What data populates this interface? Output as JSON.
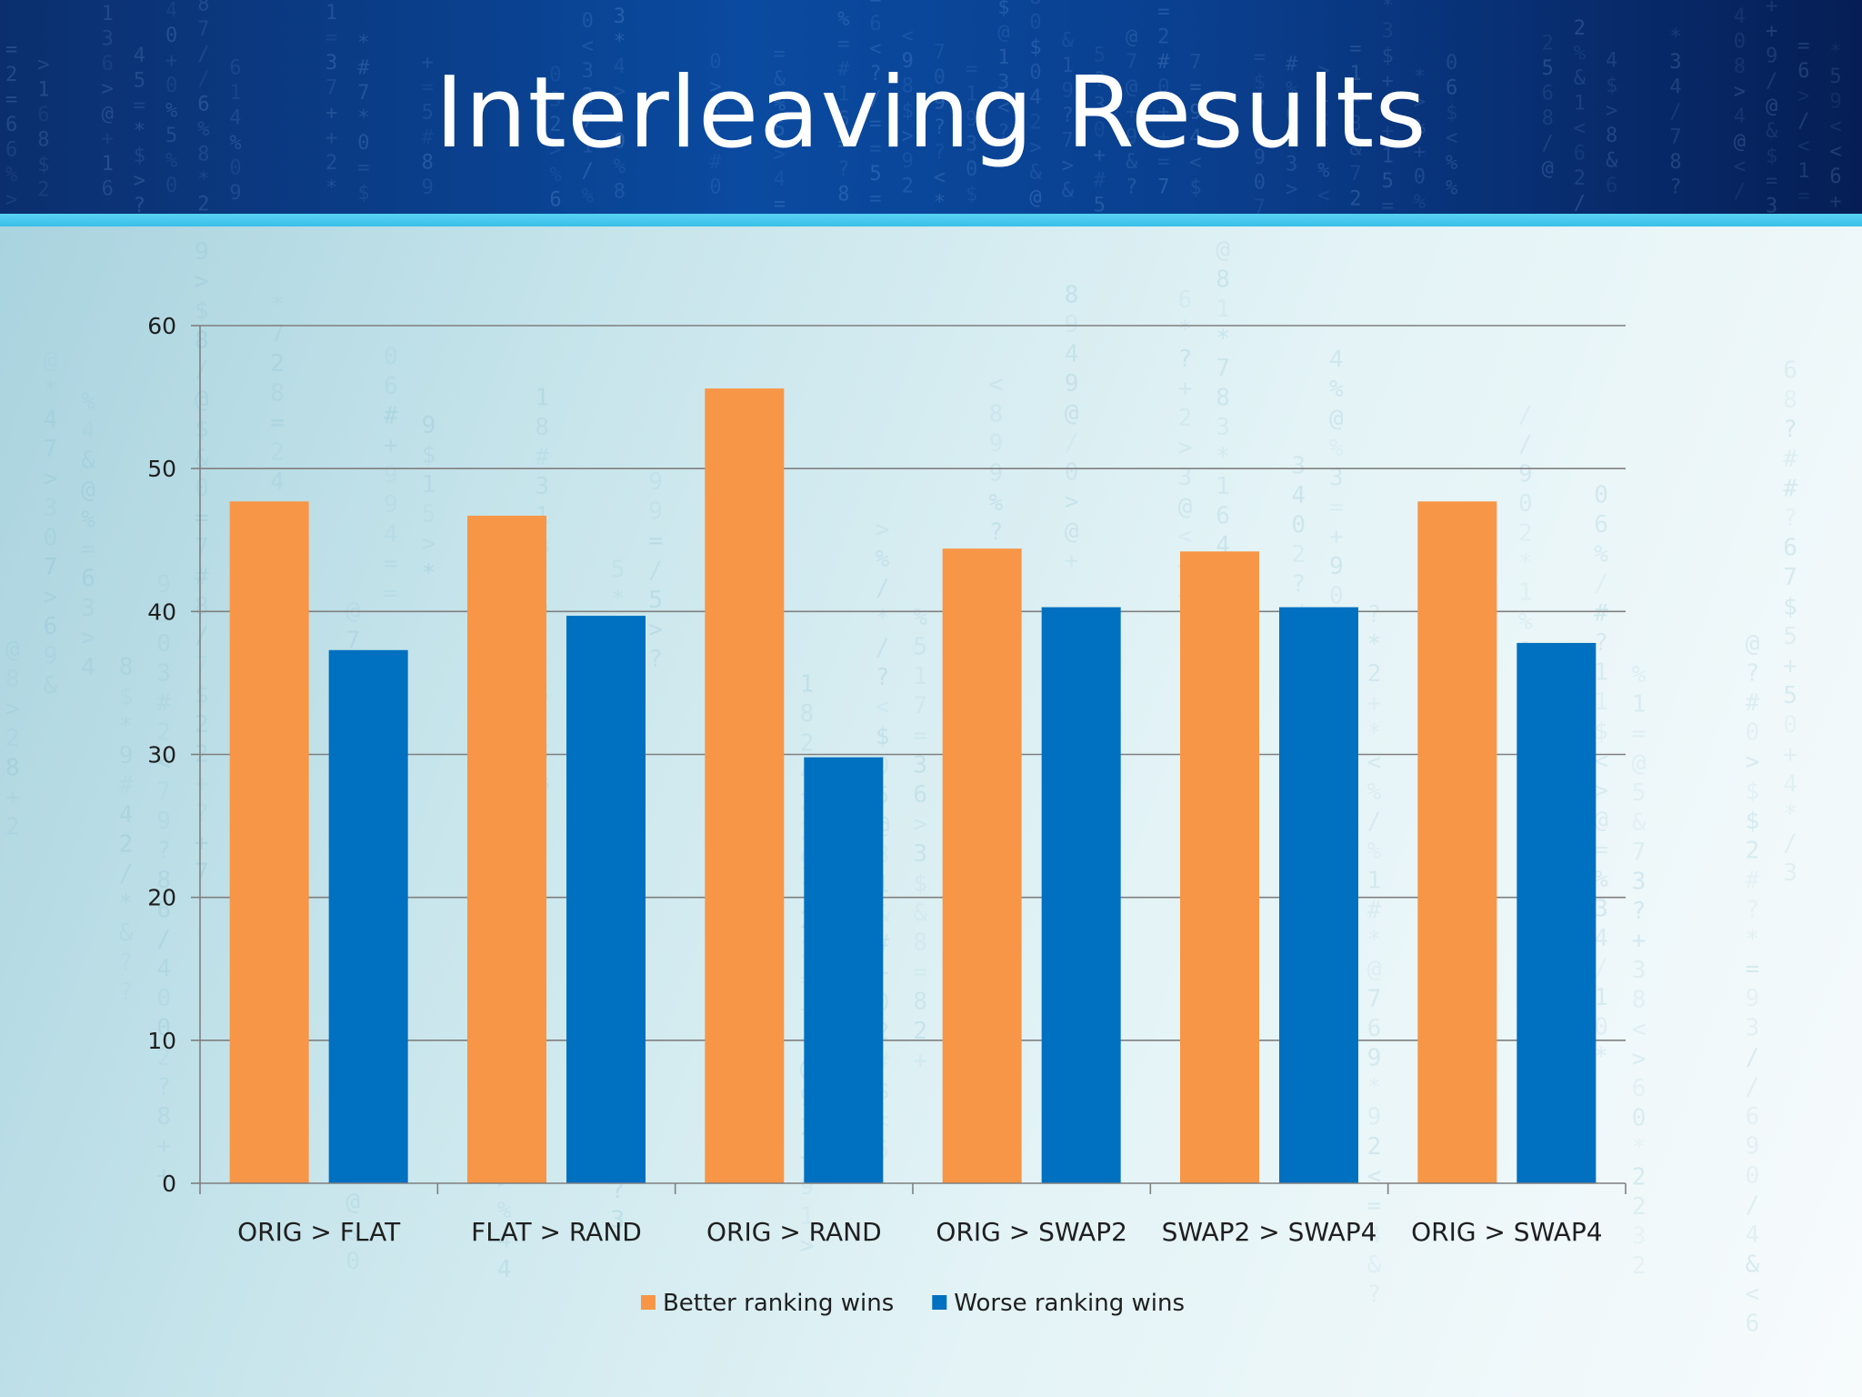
{
  "slide": {
    "title": "Interleaving Results"
  },
  "colors": {
    "header_dark": "#061e55",
    "header_mid": "#0a4aa0",
    "accent_band": "#4cc9ee",
    "series_better": "#f79646",
    "series_worse": "#0070c0",
    "gridline": "#7f7f7f",
    "text": "#1f1f1f"
  },
  "chart_data": {
    "type": "bar",
    "title": "",
    "xlabel": "",
    "ylabel": "",
    "categories": [
      "ORIG > FLAT",
      "FLAT > RAND",
      "ORIG > RAND",
      "ORIG > SWAP2",
      "SWAP2 > SWAP4",
      "ORIG > SWAP4"
    ],
    "series": [
      {
        "name": "Better ranking wins",
        "color": "#f79646",
        "values": [
          47.7,
          46.7,
          55.6,
          44.4,
          44.2,
          47.7
        ]
      },
      {
        "name": "Worse ranking wins",
        "color": "#0070c0",
        "values": [
          37.3,
          39.7,
          29.8,
          40.3,
          40.3,
          37.8
        ]
      }
    ],
    "ylim": [
      0,
      60
    ],
    "yticks": [
      0,
      10,
      20,
      30,
      40,
      50,
      60
    ],
    "grid": true,
    "legend_position": "bottom-center"
  }
}
